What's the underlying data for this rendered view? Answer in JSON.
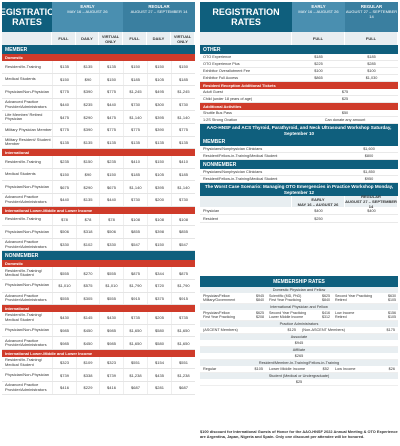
{
  "left": {
    "title": "REGISTRATION RATES",
    "early": {
      "label": "EARLY",
      "dates": "MAY 16 – AUGUST 26"
    },
    "regular": {
      "label": "REGULAR",
      "dates": "AUGUST 27 – SEPTEMBER 14"
    },
    "cols": [
      "FULL",
      "DAILY",
      "VIRTUAL ONLY",
      "FULL",
      "DAILY",
      "VIRTUAL ONLY"
    ],
    "member_section": "MEMBER",
    "member_groups": [
      {
        "category": "Domestic",
        "rows": [
          {
            "label": "Resident/In-Training",
            "values": [
              "$135",
              "$135",
              "$135",
              "$150",
              "$150",
              "$150"
            ]
          },
          {
            "label": "Medical Students",
            "values": [
              "$150",
              "$90",
              "$150",
              "$185",
              "$105",
              "$185"
            ]
          },
          {
            "label": "Physician/Non-Physician",
            "values": [
              "$775",
              "$390",
              "$775",
              "$1,245",
              "$495",
              "$1,245"
            ]
          },
          {
            "label": "Advanced Practice Provider/Administrators",
            "values": [
              "$440",
              "$235",
              "$440",
              "$730",
              "$300",
              "$730"
            ]
          },
          {
            "label": "Life Member/ Retired Physician",
            "values": [
              "$475",
              "$290",
              "$475",
              "$1,140",
              "$395",
              "$1,140"
            ]
          },
          {
            "label": "Military Physician Member",
            "values": [
              "$775",
              "$390",
              "$775",
              "$775",
              "$390",
              "$775"
            ]
          },
          {
            "label": "Military Resident/ Student Member",
            "values": [
              "$135",
              "$135",
              "$135",
              "$135",
              "$135",
              "$135"
            ]
          }
        ]
      },
      {
        "category": "International",
        "rows": [
          {
            "label": "Resident/In-Training",
            "values": [
              "$235",
              "$150",
              "$235",
              "$410",
              "$150",
              "$410"
            ]
          },
          {
            "label": "Medical Students",
            "values": [
              "$150",
              "$90",
              "$150",
              "$185",
              "$105",
              "$185"
            ]
          },
          {
            "label": "Physician/Non-Physician",
            "values": [
              "$675",
              "$290",
              "$675",
              "$1,140",
              "$395",
              "$1,140"
            ]
          },
          {
            "label": "Advanced Practice Provider/Administrators",
            "values": [
              "$440",
              "$135",
              "$440",
              "$730",
              "$200",
              "$730"
            ]
          }
        ]
      },
      {
        "category": "International Lower-Middle and Lower Income",
        "rows": [
          {
            "label": "Resident/In-Training",
            "values": [
              "$78",
              "$78",
              "$78",
              "$108",
              "$108",
              "$108"
            ]
          },
          {
            "label": "Physician/Non-Physician",
            "values": [
              "$506",
              "$318",
              "$506",
              "$855",
              "$398",
              "$855"
            ]
          },
          {
            "label": "Advanced Practice Provider/Administrators",
            "values": [
              "$330",
              "$102",
              "$330",
              "$547",
              "$150",
              "$547"
            ]
          }
        ]
      }
    ],
    "nonmember_section": "NONMEMBER",
    "nonmember_groups": [
      {
        "category": "Domestic",
        "rows": [
          {
            "label": "Resident/In-Training/ Medical Student",
            "values": [
              "$555",
              "$270",
              "$555",
              "$875",
              "$344",
              "$875"
            ]
          },
          {
            "label": "Physician/Non-Physician",
            "values": [
              "$1,010",
              "$575",
              "$1,010",
              "$1,790",
              "$720",
              "$1,790"
            ]
          },
          {
            "label": "Advanced Practice Provider/Administrators",
            "values": [
              "$555",
              "$305",
              "$555",
              "$915",
              "$375",
              "$915"
            ]
          }
        ]
      },
      {
        "category": "International",
        "rows": [
          {
            "label": "Resident/In-Training/ Medical Student",
            "values": [
              "$430",
              "$145",
              "$430",
              "$735",
              "$205",
              "$735"
            ]
          },
          {
            "label": "Physician/Non-Physician",
            "values": [
              "$985",
              "$450",
              "$985",
              "$1,650",
              "$580",
              "$1,650"
            ]
          },
          {
            "label": "Advanced Practice Provider/Administrators",
            "values": [
              "$985",
              "$450",
              "$985",
              "$1,650",
              "$580",
              "$1,650"
            ]
          }
        ]
      },
      {
        "category": "International Lower-Middle and Lower Income",
        "rows": [
          {
            "label": "Resident/In-Training/ Medical Student",
            "values": [
              "$323",
              "$109",
              "$323",
              "$551",
              "$154",
              "$551"
            ]
          },
          {
            "label": "Physician/Non-Physician",
            "values": [
              "$739",
              "$338",
              "$739",
              "$1,238",
              "$435",
              "$1,238"
            ]
          },
          {
            "label": "Advanced Practice Provider/Administrators",
            "values": [
              "$416",
              "$229",
              "$416",
              "$687",
              "$281",
              "$687"
            ]
          }
        ]
      }
    ]
  },
  "right": {
    "title": "REGISTRATION RATES",
    "early": {
      "label": "EARLY",
      "dates": "MAY 16 – AUGUST 26"
    },
    "regular": {
      "label": "REGULAR",
      "dates": "AUGUST 27 – SEPTEMBER 14"
    },
    "cols": [
      "FULL",
      "FULL"
    ],
    "other_section": "OTHER",
    "other_rows": [
      {
        "label": "OTO Experience",
        "early": "$185",
        "regular": "$185"
      },
      {
        "label": "OTO Experience Plus",
        "early": "$225",
        "regular": "$285"
      },
      {
        "label": "Exhibitor Overallotment Fee",
        "early": "$100",
        "regular": "$100"
      },
      {
        "label": "Exhibitor Full Access",
        "early": "$865",
        "regular": "$1,030"
      }
    ],
    "tickets_header": "Resident Reception Additional Tickets",
    "tickets_rows": [
      {
        "label": "Adult Guest",
        "value": "$75"
      },
      {
        "label": "Child (under 18 years of age)",
        "value": "$25"
      }
    ],
    "activities_header": "Additional Activities",
    "activities_rows": [
      {
        "label": "Shuttle Bus Pass",
        "value": "$50"
      },
      {
        "label": "1:2S Strong Ovation",
        "value": "Can donate any amount"
      }
    ],
    "course1_banner": "AAO-HNSF and ACS Thyroid, Parathyroid, and Neck Ultrasound Workshop Saturday, September 10",
    "course1_member_label": "MEMBER",
    "course1_member_rows": [
      {
        "label": "Physicians/Nonphysician Clinicians",
        "value": "$1,600"
      },
      {
        "label": "Resident/Fellow-in-Training/Medical Student",
        "value": "$800"
      }
    ],
    "course1_nonmember_label": "NONMEMBER",
    "course1_nonmember_rows": [
      {
        "label": "Physicians/Nonphysician Clinicians",
        "value": "$1,850"
      },
      {
        "label": "Resident/Fellow-in-Training/Medical Student",
        "value": "$950"
      }
    ],
    "course2_banner": "The Worst Case Scenario: Managing OTO Emergencies in Practice Workshop Monday, September 12",
    "course2_early": {
      "label": "EARLY",
      "dates": "MAY 16 – AUGUST 26"
    },
    "course2_regular": {
      "label": "REGULAR",
      "dates": "AUGUST 27 – SEPTEMBER 14"
    },
    "course2_rows": [
      {
        "label": "Physician",
        "early": "$400",
        "regular": "$400"
      },
      {
        "label": "Resident",
        "early": "$250",
        "regular": ""
      }
    ]
  },
  "membership": {
    "title": "MEMBERSHIP RATES",
    "domestic_label": "Domestic Physician and Fellow",
    "domestic_cols": [
      [
        {
          "n": "Physician/Fellow",
          "p": "$945"
        },
        {
          "n": "Military/Government",
          "p": "$840"
        }
      ],
      [
        {
          "n": "Scientific (MD, PhD)",
          "p": "$625"
        },
        {
          "n": "First Year Practicing",
          "p": "$840"
        }
      ],
      [
        {
          "n": "Second Year Practicing",
          "p": "$630"
        },
        {
          "n": "Retired",
          "p": "$105"
        }
      ]
    ],
    "intl_label": "International Physician and Fellow",
    "intl_cols": [
      [
        {
          "n": "Physician/Fellow",
          "p": "$625"
        },
        {
          "n": "First Year Practicing",
          "p": "$208"
        }
      ],
      [
        {
          "n": "Second Year Practicing",
          "p": "$416"
        },
        {
          "n": "Lower Middle Income",
          "p": "$312"
        }
      ],
      [
        {
          "n": "Low Income",
          "p": "$156"
        },
        {
          "n": "Retired",
          "p": "$105"
        }
      ]
    ],
    "app_label": "Practice Administrators",
    "app_rows": [
      {
        "n": "(ASCENT Members)",
        "p": "$125",
        "n2": "(Non-ASCENT Members)",
        "p2": "$175"
      }
    ],
    "associate_label": "Associate",
    "associate_value": "$945",
    "affiliate_label": "Affiliate",
    "affiliate_value": "$265",
    "resident_label": "Resident/Member-In-Training/Fellow-in-Training",
    "resident_row": {
      "n": "Regular",
      "p": "$105",
      "n2": "Lower Middle Income",
      "p2": "$52",
      "n3": "Low Income",
      "p3": "$26"
    },
    "student_label": "Student (Medical or Undergraduate)",
    "student_value": "$25"
  },
  "footnote": "$100 discount for International Guests of Honor for the AAO-HNSF 2022 Annual Meeting & OTO Experience are Argentina, Japan, Nigeria and Spain. Only one discount per attendee will be honored."
}
